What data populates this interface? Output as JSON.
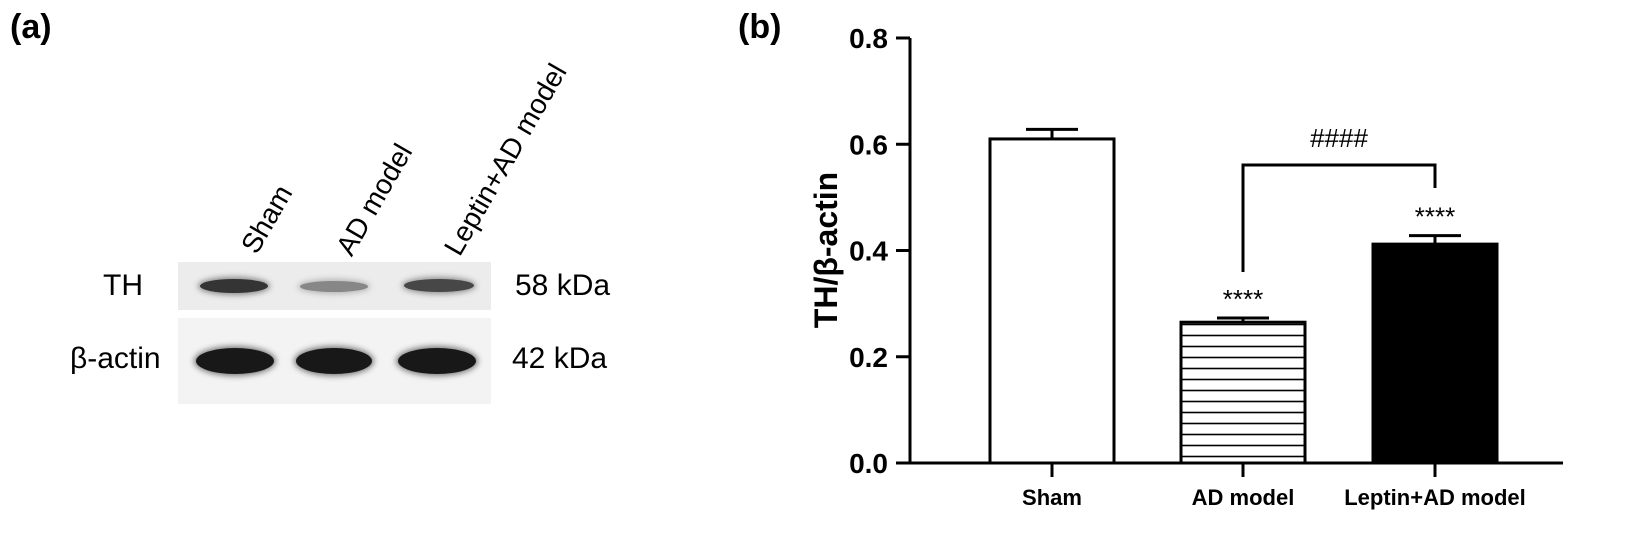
{
  "panels": {
    "a": {
      "label": "(a)",
      "lanes": [
        "Sham",
        "AD model",
        "Leptin+AD model"
      ],
      "rows": [
        {
          "name": "TH",
          "size": "58 kDa",
          "intensity": [
            0.8,
            0.35,
            0.7
          ]
        },
        {
          "name": "β-actin",
          "size": "42 kDa",
          "intensity": [
            0.95,
            0.95,
            0.95
          ]
        }
      ]
    },
    "b": {
      "label": "(b)"
    }
  },
  "chart_data": {
    "type": "bar",
    "categories": [
      "Sham",
      "AD model",
      "Leptin+AD model"
    ],
    "values": [
      0.61,
      0.265,
      0.412
    ],
    "errors": [
      0.018,
      0.008,
      0.016
    ],
    "bar_styles": [
      "white",
      "horizontal-stripes",
      "black"
    ],
    "ylabel": "TH/β-actin",
    "xlabel": "",
    "ylim": [
      0,
      0.8
    ],
    "yticks": [
      "0.0",
      "0.2",
      "0.4",
      "0.6",
      "0.8"
    ],
    "annotations": [
      {
        "text": "****",
        "category": "AD model"
      },
      {
        "text": "****",
        "category": "Leptin+AD model"
      },
      {
        "text": "####",
        "between": [
          "AD model",
          "Leptin+AD model"
        ]
      }
    ],
    "colors": {
      "axis": "#000000",
      "bar_fill_dark": "#000000",
      "bar_fill_light": "#ffffff"
    }
  }
}
